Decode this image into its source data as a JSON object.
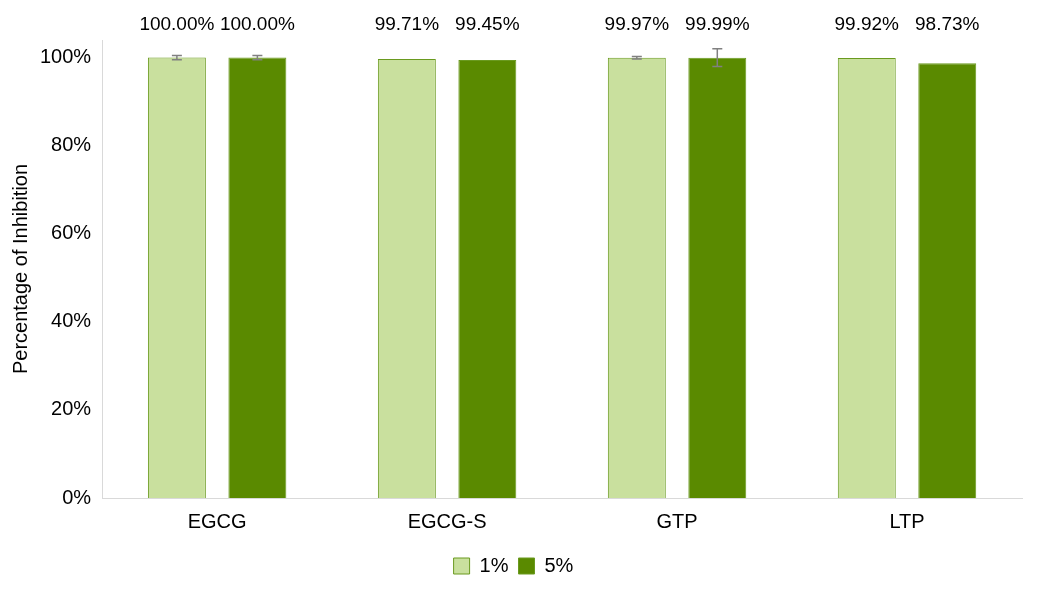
{
  "chart_data": {
    "type": "bar",
    "ylabel": "Percentage of Inhibition",
    "categories": [
      "EGCG",
      "EGCG-S",
      "GTP",
      "LTP"
    ],
    "series": [
      {
        "name": "1%",
        "color": "#c9e09e",
        "values": [
          100.0,
          99.71,
          99.97,
          99.92
        ],
        "errors": [
          0.5,
          null,
          0.3,
          null
        ],
        "value_labels": [
          "100.00%",
          "99.71%",
          "99.97%",
          "99.92%"
        ]
      },
      {
        "name": "5%",
        "color": "#5a8a00",
        "values": [
          100.0,
          99.45,
          99.99,
          98.73
        ],
        "errors": [
          0.5,
          null,
          2,
          null
        ],
        "value_labels": [
          "100.00%",
          "99.45%",
          "99.99%",
          "98.73%"
        ]
      }
    ],
    "ylim": [
      0,
      104
    ],
    "yticks": [
      {
        "value": 0,
        "label": "0%"
      },
      {
        "value": 20,
        "label": "20%"
      },
      {
        "value": 40,
        "label": "40%"
      },
      {
        "value": 60,
        "label": "60%"
      },
      {
        "value": 80,
        "label": "80%"
      },
      {
        "value": 100,
        "label": "100%"
      }
    ],
    "grid": false,
    "legend": "bottom"
  }
}
